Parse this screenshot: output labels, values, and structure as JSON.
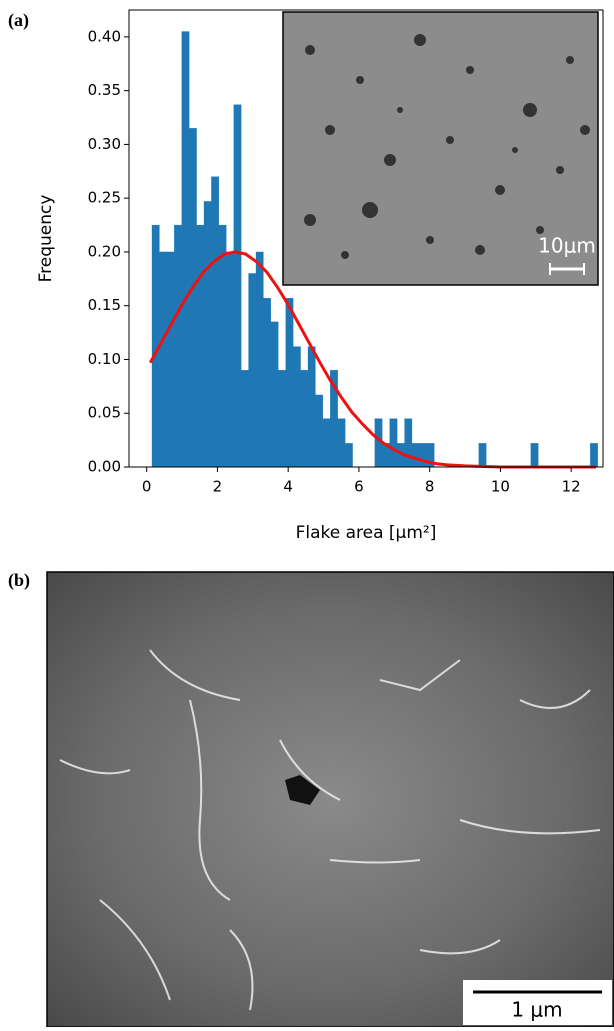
{
  "panel_labels": [
    "(a)",
    "(b)"
  ],
  "chart_data": {
    "type": "histogram",
    "xlabel": "Flake area [μm²]",
    "ylabel": "Frequency",
    "color": "#1f77b4",
    "bins": [
      0.15,
      0.36,
      0.57,
      0.78,
      0.99,
      1.2,
      1.41,
      1.62,
      1.83,
      2.04,
      2.25,
      2.46,
      2.67,
      2.88,
      3.09,
      3.3,
      3.51,
      3.72,
      3.93,
      4.14,
      4.35,
      4.56,
      4.77,
      4.98,
      5.19,
      5.4,
      5.61,
      5.82,
      6.03,
      6.24,
      6.45,
      6.66,
      6.87,
      7.08,
      7.29,
      7.5,
      7.71,
      7.92,
      8.13,
      8.34,
      8.55,
      8.76,
      8.97,
      9.18,
      9.39,
      9.6,
      9.81,
      10.02,
      10.23,
      10.44,
      10.65,
      10.86,
      11.07,
      11.28,
      11.49,
      11.7,
      11.91,
      12.12,
      12.33,
      12.54,
      12.75
    ],
    "values": [
      0.225,
      0.2,
      0.2,
      0.225,
      0.405,
      0.315,
      0.225,
      0.247,
      0.27,
      0.225,
      0.2,
      0.337,
      0.09,
      0.18,
      0.2,
      0.157,
      0.135,
      0.09,
      0.157,
      0.112,
      0.09,
      0.112,
      0.067,
      0.045,
      0.09,
      0.045,
      0.022,
      0,
      0,
      0,
      0.045,
      0.022,
      0.045,
      0.022,
      0.045,
      0.022,
      0.022,
      0.022,
      0,
      0,
      0,
      0,
      0,
      0,
      0.022,
      0,
      0,
      0,
      0,
      0,
      0,
      0.022,
      0,
      0,
      0,
      0,
      0,
      0,
      0,
      0.022
    ],
    "fit": {
      "color": "#ee1111",
      "x": [
        0.1,
        0.4,
        0.7,
        1.0,
        1.3,
        1.6,
        1.9,
        2.2,
        2.5,
        2.8,
        3.1,
        3.4,
        3.7,
        4.0,
        4.3,
        4.6,
        4.9,
        5.2,
        5.5,
        5.8,
        6.1,
        6.4,
        6.7,
        7.0,
        7.3,
        7.6,
        7.9,
        8.2,
        8.5,
        9.0,
        10.0,
        11.0,
        12.0,
        12.7
      ],
      "values": [
        0.097,
        0.115,
        0.133,
        0.151,
        0.167,
        0.181,
        0.191,
        0.198,
        0.2,
        0.198,
        0.191,
        0.181,
        0.167,
        0.151,
        0.133,
        0.115,
        0.097,
        0.08,
        0.065,
        0.051,
        0.04,
        0.03,
        0.022,
        0.016,
        0.011,
        0.008,
        0.005,
        0.003,
        0.002,
        0.001,
        0,
        0,
        0,
        0
      ]
    },
    "xlim": [
      -0.5,
      12.9
    ],
    "ylim": [
      0,
      0.425
    ],
    "xticks": [
      0,
      2,
      4,
      6,
      8,
      10,
      12
    ],
    "yticks": [
      {
        "value": 0,
        "label": "0.00"
      },
      {
        "value": 0.05,
        "label": "0.05"
      },
      {
        "value": 0.1,
        "label": "0.10"
      },
      {
        "value": 0.15,
        "label": "0.15"
      },
      {
        "value": 0.2,
        "label": "0.20"
      },
      {
        "value": 0.25,
        "label": "0.25"
      },
      {
        "value": 0.3,
        "label": "0.30"
      },
      {
        "value": 0.35,
        "label": "0.35"
      },
      {
        "value": 0.4,
        "label": "0.40"
      }
    ]
  },
  "inset": {
    "scale_bar": "10μm"
  },
  "micrograph": {
    "scale_bar": "1 μm"
  }
}
